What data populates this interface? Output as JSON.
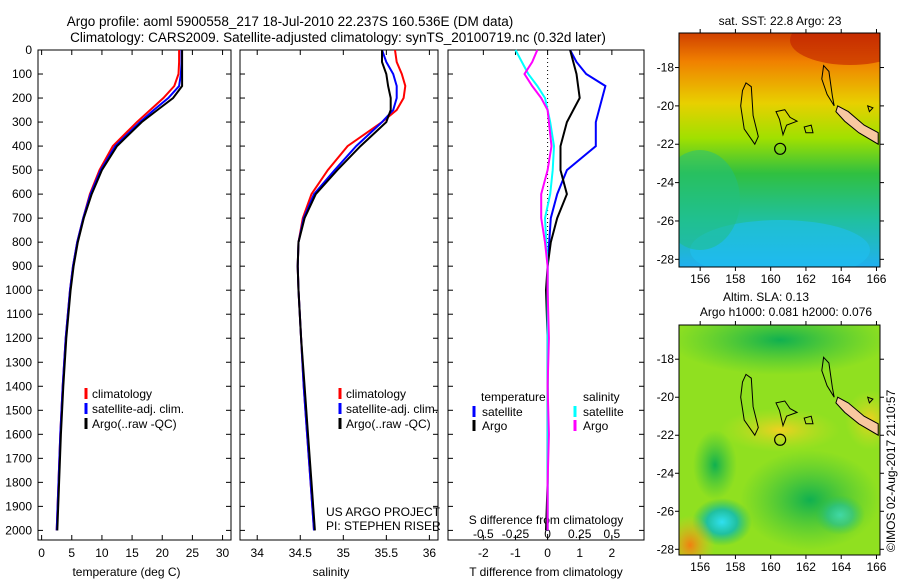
{
  "title": {
    "line1": "Argo profile: aoml 5900558_217 18-Jul-2010 22.237S 160.536E (DM data)",
    "line2": "Climatology: CARS2009. Satellite-adjusted climatology: synTS_20100719.nc (0.32d later)"
  },
  "colors": {
    "climatology": "#ff0000",
    "satellite": "#0000ff",
    "argo": "#000000",
    "sat_s": "#00ffff",
    "argo_s": "#ff00ff",
    "land": "#f8c8a0"
  },
  "chart_data": [
    {
      "type": "line",
      "id": "temperature",
      "xlabel": "temperature (deg C)",
      "ylabel": "",
      "xlim": [
        -0.6,
        31.4
      ],
      "ylim": [
        0,
        2040
      ],
      "xticks": [
        0,
        5,
        10,
        15,
        20,
        25,
        30
      ],
      "yticks": [
        0,
        100,
        200,
        300,
        400,
        500,
        600,
        700,
        800,
        900,
        1000,
        1100,
        1200,
        1300,
        1400,
        1500,
        1600,
        1700,
        1800,
        1900,
        2000
      ],
      "legend": [
        "climatology",
        "satellite-adj. clim.",
        "Argo(..raw -QC)"
      ],
      "legend_position": "bottom-right",
      "depth": [
        0,
        50,
        100,
        150,
        200,
        250,
        300,
        400,
        500,
        600,
        700,
        800,
        900,
        1000,
        1200,
        1400,
        1600,
        1800,
        2000
      ],
      "series": [
        {
          "name": "climatology",
          "color": "#ff0000",
          "values": [
            22.8,
            22.8,
            22.7,
            22.0,
            20.2,
            18.0,
            15.8,
            11.8,
            9.6,
            8.0,
            6.9,
            5.9,
            5.2,
            4.7,
            4.0,
            3.5,
            3.1,
            2.8,
            2.5
          ]
        },
        {
          "name": "satellite-adj. clim.",
          "color": "#0000ff",
          "values": [
            23.2,
            23.2,
            23.1,
            22.8,
            21.0,
            18.6,
            16.3,
            12.2,
            9.8,
            8.1,
            6.9,
            5.9,
            5.2,
            4.7,
            4.0,
            3.5,
            3.1,
            2.8,
            2.5
          ]
        },
        {
          "name": "Argo(..raw -QC)",
          "color": "#000000",
          "values": [
            23.3,
            23.3,
            23.3,
            23.3,
            21.8,
            19.2,
            16.6,
            12.5,
            10.0,
            8.3,
            7.0,
            6.0,
            5.3,
            4.8,
            4.1,
            3.6,
            3.2,
            2.9,
            2.6
          ]
        }
      ]
    },
    {
      "type": "line",
      "id": "salinity",
      "xlabel": "salinity",
      "xlim": [
        33.8,
        36.1
      ],
      "ylim": [
        0,
        2040
      ],
      "xticks": [
        34,
        34.5,
        35,
        35.5,
        36
      ],
      "legend": [
        "climatology",
        "satellite-adj. clim.",
        "Argo(..raw -QC)"
      ],
      "legend_position": "bottom-right",
      "annotation": [
        "US ARGO PROJECT",
        "PI: STEPHEN RISER"
      ],
      "depth": [
        0,
        50,
        100,
        150,
        200,
        250,
        300,
        400,
        500,
        600,
        700,
        800,
        900,
        1000,
        1200,
        1400,
        1600,
        1800,
        2000
      ],
      "series": [
        {
          "name": "climatology",
          "color": "#ff0000",
          "values": [
            35.6,
            35.62,
            35.68,
            35.72,
            35.7,
            35.62,
            35.45,
            35.05,
            34.82,
            34.63,
            34.53,
            34.48,
            34.47,
            34.48,
            34.51,
            34.54,
            34.58,
            34.62,
            34.66
          ]
        },
        {
          "name": "satellite-adj. clim.",
          "color": "#0000ff",
          "values": [
            35.45,
            35.5,
            35.58,
            35.62,
            35.62,
            35.58,
            35.45,
            35.15,
            34.9,
            34.66,
            34.54,
            34.48,
            34.47,
            34.48,
            34.51,
            34.54,
            34.58,
            34.62,
            34.66
          ]
        },
        {
          "name": "Argo(..raw -QC)",
          "color": "#000000",
          "values": [
            35.45,
            35.45,
            35.5,
            35.52,
            35.55,
            35.55,
            35.5,
            35.2,
            34.93,
            34.68,
            34.55,
            34.48,
            34.47,
            34.48,
            34.51,
            34.55,
            34.59,
            34.63,
            34.67
          ]
        }
      ]
    },
    {
      "type": "line",
      "id": "difference",
      "xlabel": "T difference from climatology",
      "x2label": "S difference from climatology",
      "xlim": [
        -3.1,
        3.0
      ],
      "ylim": [
        0,
        2040
      ],
      "xticks": [
        -2,
        -1,
        0,
        1,
        2
      ],
      "x2ticks": [
        -0.5,
        -0.25,
        0,
        0.25,
        0.5
      ],
      "x2labels": [
        "-0.5",
        "-0.25",
        "0",
        "0.25",
        "0.5"
      ],
      "legend_headers": [
        "temperature",
        "salinity"
      ],
      "legend": [
        [
          "satellite",
          "Argo"
        ],
        [
          "satellite",
          "Argo"
        ]
      ],
      "legend_position": "bottom",
      "depth": [
        0,
        50,
        100,
        150,
        200,
        250,
        300,
        400,
        500,
        600,
        700,
        800,
        900,
        1000,
        1200,
        1400,
        1600,
        1800,
        2000
      ],
      "series": [
        {
          "name": "T satellite",
          "color": "#0000ff",
          "unit": "T",
          "values": [
            0.7,
            0.9,
            1.2,
            1.8,
            1.7,
            1.6,
            1.5,
            1.5,
            0.6,
            0.3,
            0.1,
            0.05,
            0,
            0,
            0,
            0,
            0,
            0,
            0
          ]
        },
        {
          "name": "T Argo",
          "color": "#000000",
          "unit": "T",
          "values": [
            0.7,
            0.8,
            0.9,
            0.95,
            1.0,
            0.8,
            0.6,
            0.4,
            0.4,
            0.6,
            0.3,
            0.1,
            0,
            -0.05,
            0,
            0,
            0,
            0,
            -0.05
          ]
        },
        {
          "name": "S satellite",
          "color": "#00ffff",
          "unit": "S",
          "values": [
            -0.25,
            -0.2,
            -0.15,
            -0.08,
            -0.02,
            0,
            0.02,
            0.05,
            0.04,
            0.02,
            -0.02,
            -0.01,
            0,
            0,
            0,
            0,
            0,
            0,
            0
          ]
        },
        {
          "name": "S Argo",
          "color": "#ff00ff",
          "unit": "S",
          "values": [
            -0.08,
            -0.12,
            -0.18,
            -0.12,
            -0.05,
            0,
            0.01,
            0.03,
            0.0,
            -0.05,
            -0.05,
            -0.02,
            0,
            0,
            0.01,
            0,
            0.01,
            0,
            0
          ]
        }
      ]
    },
    {
      "type": "heatmap",
      "id": "sst-map",
      "title": "sat. SST: 22.8 Argo: 23",
      "xlim": [
        154.8,
        166.2
      ],
      "ylim": [
        -28.4,
        -16.2
      ],
      "xticks": [
        156,
        158,
        160,
        162,
        164,
        166
      ],
      "yticks": [
        -18,
        -20,
        -22,
        -24,
        -26,
        -28
      ],
      "profile_location": [
        160.536,
        -22.237
      ]
    },
    {
      "type": "heatmap",
      "id": "sla-map",
      "title": "Altim. SLA: 0.13",
      "subtitle": "Argo h1000: 0.081 h2000: 0.076",
      "xlim": [
        154.8,
        166.2
      ],
      "ylim": [
        -28.3,
        -16.2
      ],
      "xticks": [
        156,
        158,
        160,
        162,
        164,
        166
      ],
      "yticks": [
        -18,
        -20,
        -22,
        -24,
        -26,
        -28
      ],
      "profile_location": [
        160.536,
        -22.237
      ]
    }
  ],
  "copyright": "©IMOS 02-Aug-2017 21:10:57"
}
